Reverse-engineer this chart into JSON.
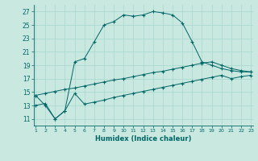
{
  "xlabel": "Humidex (Indice chaleur)",
  "background_color": "#c8e8e0",
  "line_color": "#006666",
  "grid_color": "#a8d8d0",
  "xlim": [
    1,
    23
  ],
  "ylim": [
    10,
    28
  ],
  "yticks": [
    11,
    13,
    15,
    17,
    19,
    21,
    23,
    25,
    27
  ],
  "xticks": [
    1,
    2,
    3,
    4,
    5,
    6,
    7,
    8,
    9,
    10,
    11,
    12,
    13,
    14,
    15,
    16,
    17,
    18,
    19,
    20,
    21,
    22,
    23
  ],
  "series1_x": [
    1,
    2,
    3,
    4,
    5,
    6,
    7,
    8,
    9,
    10,
    11,
    12,
    13,
    14,
    15,
    16,
    17,
    18,
    19,
    20,
    21,
    22,
    23
  ],
  "series1_y": [
    14.5,
    13.0,
    11.0,
    12.2,
    19.5,
    20.0,
    22.5,
    25.0,
    25.5,
    26.5,
    26.3,
    26.5,
    27.0,
    26.8,
    26.5,
    25.3,
    22.5,
    19.5,
    19.0,
    18.5,
    18.2,
    18.0,
    18.0
  ],
  "series2_x": [
    1,
    2,
    3,
    4,
    5,
    6,
    7,
    8,
    9,
    10,
    11,
    12,
    13,
    14,
    15,
    16,
    17,
    18,
    19,
    20,
    21,
    22,
    23
  ],
  "series2_y": [
    14.5,
    14.8,
    15.1,
    15.4,
    15.6,
    15.9,
    16.2,
    16.5,
    16.8,
    17.0,
    17.3,
    17.6,
    17.9,
    18.1,
    18.4,
    18.7,
    19.0,
    19.3,
    19.5,
    19.0,
    18.5,
    18.2,
    18.0
  ],
  "series3_x": [
    1,
    2,
    3,
    4,
    5,
    6,
    7,
    8,
    9,
    10,
    11,
    12,
    13,
    14,
    15,
    16,
    17,
    18,
    19,
    20,
    21,
    22,
    23
  ],
  "series3_y": [
    13.0,
    13.3,
    11.0,
    12.2,
    14.8,
    13.2,
    13.5,
    13.8,
    14.2,
    14.5,
    14.8,
    15.1,
    15.4,
    15.7,
    16.0,
    16.3,
    16.6,
    16.9,
    17.2,
    17.5,
    17.0,
    17.3,
    17.5
  ]
}
